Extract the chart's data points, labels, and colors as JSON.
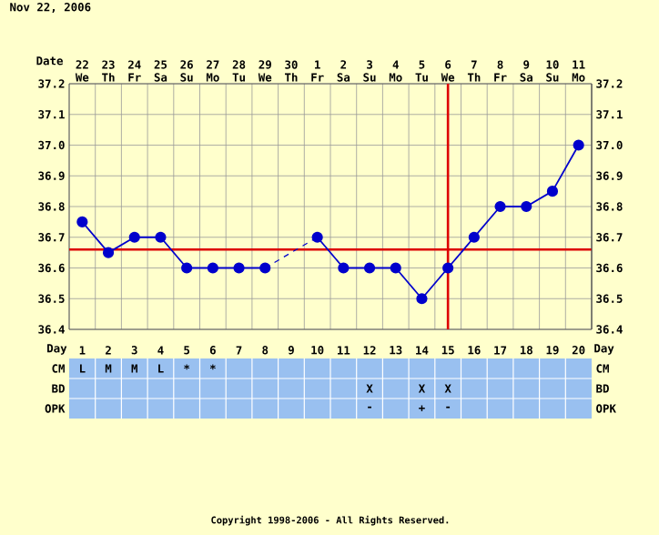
{
  "chart_data": [
    {
      "type": "line",
      "title": "Nov 22, 2006",
      "xlabel": "Date",
      "categories": [
        "22 We",
        "23 Th",
        "24 Fr",
        "25 Sa",
        "26 Su",
        "27 Mo",
        "28 Tu",
        "29 We",
        "30 Th",
        "1 Fr",
        "2 Sa",
        "3 Su",
        "4 Mo",
        "5 Tu",
        "6 We",
        "7 Th",
        "8 Fr",
        "9 Sa",
        "10 Su",
        "11 Mo"
      ],
      "series": [
        {
          "color": "#0000cc",
          "values": [
            36.75,
            36.65,
            36.7,
            36.7,
            36.6,
            36.6,
            36.6,
            36.6,
            null,
            36.7,
            36.6,
            36.6,
            36.6,
            36.5,
            36.6,
            36.7,
            36.8,
            36.8,
            36.85,
            37.0
          ]
        }
      ],
      "ylim": [
        36.4,
        37.2
      ],
      "yticks": [
        36.4,
        36.5,
        36.6,
        36.7,
        36.8,
        36.9,
        {
          "value": 37.0,
          "label": "37.0"
        },
        37.1,
        37.2
      ],
      "y2lim": [
        36.4,
        37.2
      ],
      "y2ticks": [
        36.4,
        36.5,
        36.6,
        36.7,
        36.8,
        36.9,
        {
          "value": 37.0,
          "label": "37.0"
        },
        37.1,
        37.2
      ],
      "ref_lines": [
        {
          "axis": "y",
          "value": 36.66,
          "color": "#dd0000"
        },
        {
          "axis": "x",
          "value": "6 We",
          "color": "#dd0000"
        }
      ],
      "grid": true,
      "marker": "circle",
      "line_style": "solid",
      "annotations": [
        "Copyright 1998-2006 - All Rights Reserved."
      ]
    },
    {
      "type": "heatmap",
      "xlabel": "Day",
      "categories": [
        "1",
        "2",
        "3",
        "4",
        "5",
        "6",
        "7",
        "8",
        "9",
        "10",
        "11",
        "12",
        "13",
        "14",
        "15",
        "16",
        "17",
        "18",
        "19",
        "20"
      ],
      "y_categories": [
        "CM",
        "BD",
        "OPK"
      ],
      "y2_categories": [
        "CM",
        "BD",
        "OPK"
      ],
      "cells": [
        [
          null,
          null,
          null,
          null,
          null,
          null,
          null,
          null,
          null,
          null,
          null,
          null,
          null,
          null,
          null,
          null,
          null,
          null,
          null,
          null
        ],
        [
          null,
          null,
          null,
          null,
          null,
          null,
          null,
          null,
          null,
          null,
          null,
          null,
          null,
          null,
          null,
          null,
          null,
          null,
          null,
          null
        ],
        [
          null,
          null,
          null,
          null,
          null,
          null,
          null,
          null,
          null,
          null,
          null,
          null,
          null,
          null,
          null,
          null,
          null,
          null,
          null,
          null
        ]
      ],
      "cell_labels": [
        [
          "L",
          "M",
          "M",
          "L",
          "*",
          "*",
          null,
          null,
          null,
          null,
          null,
          null,
          null,
          null,
          null,
          null,
          null,
          null,
          null,
          null
        ],
        [
          null,
          null,
          null,
          null,
          null,
          null,
          null,
          null,
          null,
          null,
          null,
          "X",
          null,
          "X",
          "X",
          null,
          null,
          null,
          null,
          null
        ],
        [
          null,
          null,
          null,
          null,
          null,
          null,
          null,
          null,
          null,
          null,
          null,
          "-",
          null,
          "+",
          "-",
          null,
          null,
          null,
          null,
          null
        ]
      ]
    }
  ]
}
